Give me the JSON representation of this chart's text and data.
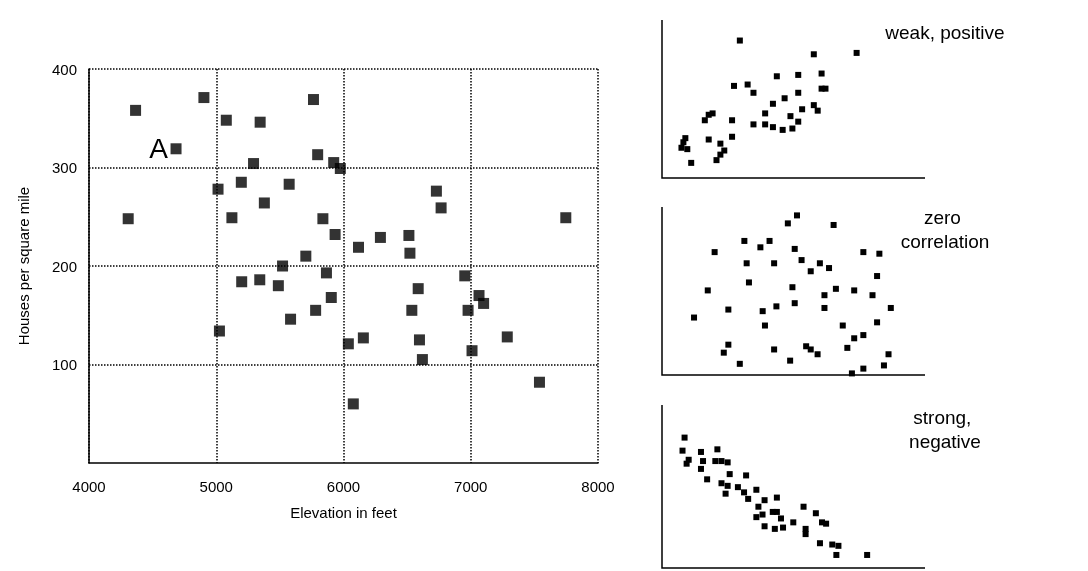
{
  "chart_data": [
    {
      "type": "scatter",
      "xlabel": "Elevation in feet",
      "ylabel": "Houses per square mile",
      "xlim": [
        4000,
        8000
      ],
      "xticks": [
        4000,
        5000,
        6000,
        7000,
        8000
      ],
      "ylim": [
        0,
        400
      ],
      "yticks": [
        100,
        200,
        300,
        400
      ],
      "grid": true,
      "marker": "square",
      "color": "#000000",
      "annotations": [
        {
          "text": "A",
          "x": 4684,
          "y": 319
        }
      ],
      "x": [
        4366,
        4903,
        4684,
        4308,
        5079,
        5345,
        5764,
        5797,
        5923,
        5975,
        5293,
        5014,
        5197,
        5573,
        5378,
        5123,
        5838,
        5934,
        6118,
        6290,
        5704,
        5521,
        5200,
        5342,
        5488,
        5866,
        5904,
        5781,
        5584,
        5025,
        6038,
        6156,
        6077,
        6730,
        6767,
        7747,
        6514,
        6522,
        6953,
        6587,
        7065,
        7101,
        6537,
        6979,
        6597,
        7287,
        6620,
        7010,
        7540
      ],
      "values": [
        358,
        371,
        319,
        248,
        348,
        346,
        369,
        313,
        305,
        299,
        304,
        278,
        285,
        283,
        264,
        249,
        248,
        232,
        219,
        229,
        210,
        200,
        184,
        186,
        180,
        193,
        168,
        155,
        146,
        134,
        121,
        127,
        60,
        276,
        259,
        249,
        231,
        213,
        190,
        177,
        170,
        162,
        155,
        155,
        125,
        128,
        105,
        114,
        82
      ]
    },
    {
      "type": "other",
      "title": "weak, positive"
    },
    {
      "type": "other",
      "title": "zero correlation"
    },
    {
      "type": "other",
      "title": "strong, negative"
    }
  ]
}
